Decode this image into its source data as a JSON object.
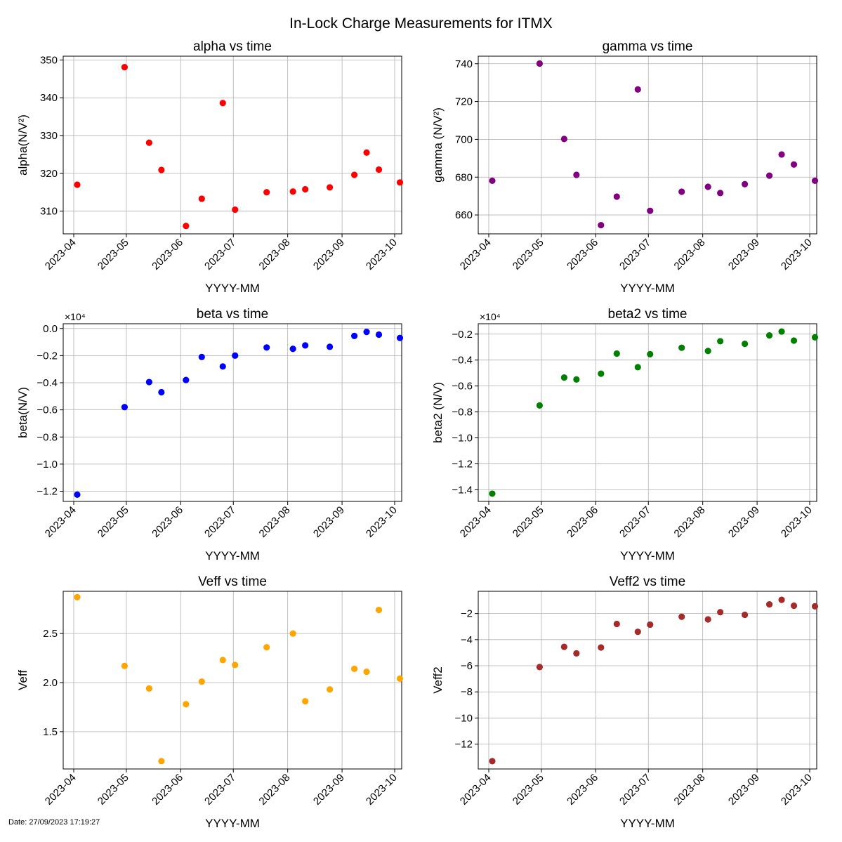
{
  "figure": {
    "title": "In-Lock Charge Measurements for ITMX",
    "footer": "Date: 27/09/2023 17:19:27"
  },
  "colors": {
    "alpha": "#ff0000",
    "gamma": "#800080",
    "beta": "#0000ff",
    "beta2": "#008000",
    "Veff": "#ffa500",
    "Veff2": "#a52a2a",
    "grid": "#b0b0b0"
  },
  "chart_data": [
    {
      "id": "alpha",
      "type": "scatter",
      "title": "alpha vs time",
      "xlabel": "YYYY-MM",
      "ylabel": "alpha(N/V²)",
      "color": "#ff0000",
      "grid": true,
      "x_ticks": [
        "2023-04",
        "2023-05",
        "2023-06",
        "2023-07",
        "2023-08",
        "2023-09",
        "2023-10"
      ],
      "xlim": [
        "2023-03-26",
        "2023-10-05"
      ],
      "ylim": [
        304,
        351
      ],
      "y_ticks": [
        "310",
        "320",
        "330",
        "340",
        "350"
      ],
      "y_tick_values": [
        310,
        320,
        330,
        340,
        350
      ],
      "offset_text": "",
      "points": [
        {
          "x": "2023-04-03",
          "y": 317.0
        },
        {
          "x": "2023-04-30",
          "y": 348.1
        },
        {
          "x": "2023-05-14",
          "y": 328.1
        },
        {
          "x": "2023-05-21",
          "y": 320.9
        },
        {
          "x": "2023-06-04",
          "y": 306.1
        },
        {
          "x": "2023-06-13",
          "y": 313.3
        },
        {
          "x": "2023-06-25",
          "y": 338.6
        },
        {
          "x": "2023-07-02",
          "y": 310.4
        },
        {
          "x": "2023-07-20",
          "y": 315.0
        },
        {
          "x": "2023-08-04",
          "y": 315.2
        },
        {
          "x": "2023-08-11",
          "y": 315.8
        },
        {
          "x": "2023-08-25",
          "y": 316.3
        },
        {
          "x": "2023-09-08",
          "y": 319.6
        },
        {
          "x": "2023-09-15",
          "y": 325.5
        },
        {
          "x": "2023-09-22",
          "y": 321.0
        },
        {
          "x": "2023-10-04",
          "y": 317.6
        }
      ]
    },
    {
      "id": "gamma",
      "type": "scatter",
      "title": "gamma vs time",
      "xlabel": "YYYY-MM",
      "ylabel": "gamma (N/V²)",
      "color": "#800080",
      "grid": true,
      "x_ticks": [
        "2023-04",
        "2023-05",
        "2023-06",
        "2023-07",
        "2023-08",
        "2023-09",
        "2023-10"
      ],
      "xlim": [
        "2023-03-26",
        "2023-10-05"
      ],
      "ylim": [
        650,
        744
      ],
      "y_ticks": [
        "660",
        "680",
        "700",
        "720",
        "740"
      ],
      "y_tick_values": [
        660,
        680,
        700,
        720,
        740
      ],
      "offset_text": "",
      "points": [
        {
          "x": "2023-04-03",
          "y": 678.1
        },
        {
          "x": "2023-04-30",
          "y": 740.1
        },
        {
          "x": "2023-05-14",
          "y": 700.2
        },
        {
          "x": "2023-05-21",
          "y": 681.2
        },
        {
          "x": "2023-06-04",
          "y": 654.6
        },
        {
          "x": "2023-06-13",
          "y": 669.7
        },
        {
          "x": "2023-06-25",
          "y": 726.4
        },
        {
          "x": "2023-07-02",
          "y": 662.2
        },
        {
          "x": "2023-07-20",
          "y": 672.3
        },
        {
          "x": "2023-08-04",
          "y": 674.9
        },
        {
          "x": "2023-08-11",
          "y": 671.6
        },
        {
          "x": "2023-08-25",
          "y": 676.3
        },
        {
          "x": "2023-09-08",
          "y": 680.8
        },
        {
          "x": "2023-09-15",
          "y": 692.0
        },
        {
          "x": "2023-09-22",
          "y": 686.7
        },
        {
          "x": "2023-10-04",
          "y": 678.1
        }
      ]
    },
    {
      "id": "beta",
      "type": "scatter",
      "title": "beta vs time",
      "xlabel": "YYYY-MM",
      "ylabel": "beta(N/V)",
      "color": "#0000ff",
      "grid": true,
      "x_ticks": [
        "2023-04",
        "2023-05",
        "2023-06",
        "2023-07",
        "2023-08",
        "2023-09",
        "2023-10"
      ],
      "xlim": [
        "2023-03-26",
        "2023-10-05"
      ],
      "ylim": [
        -12750,
        350
      ],
      "y_ticks": [
        "0.0",
        "−0.2",
        "−0.4",
        "−0.6",
        "−0.8",
        "−1.0",
        "−1.2"
      ],
      "y_tick_values": [
        0,
        -2000,
        -4000,
        -6000,
        -8000,
        -10000,
        -12000
      ],
      "offset_text": "×10⁴",
      "points": [
        {
          "x": "2023-04-03",
          "y": -12250
        },
        {
          "x": "2023-04-30",
          "y": -5800
        },
        {
          "x": "2023-05-14",
          "y": -3950
        },
        {
          "x": "2023-05-21",
          "y": -4700
        },
        {
          "x": "2023-06-04",
          "y": -3800
        },
        {
          "x": "2023-06-13",
          "y": -2100
        },
        {
          "x": "2023-06-25",
          "y": -2800
        },
        {
          "x": "2023-07-02",
          "y": -2000
        },
        {
          "x": "2023-07-20",
          "y": -1400
        },
        {
          "x": "2023-08-04",
          "y": -1500
        },
        {
          "x": "2023-08-11",
          "y": -1250
        },
        {
          "x": "2023-08-25",
          "y": -1350
        },
        {
          "x": "2023-09-08",
          "y": -550
        },
        {
          "x": "2023-09-15",
          "y": -250
        },
        {
          "x": "2023-09-22",
          "y": -450
        },
        {
          "x": "2023-10-04",
          "y": -700
        }
      ]
    },
    {
      "id": "beta2",
      "type": "scatter",
      "title": "beta2 vs time",
      "xlabel": "YYYY-MM",
      "ylabel": "beta2 (N/V)",
      "color": "#008000",
      "grid": true,
      "x_ticks": [
        "2023-04",
        "2023-05",
        "2023-06",
        "2023-07",
        "2023-08",
        "2023-09",
        "2023-10"
      ],
      "xlim": [
        "2023-03-26",
        "2023-10-05"
      ],
      "ylim": [
        -14900,
        -1200
      ],
      "y_ticks": [
        "−0.2",
        "−0.4",
        "−0.6",
        "−0.8",
        "−1.0",
        "−1.2",
        "−1.4"
      ],
      "y_tick_values": [
        -2000,
        -4000,
        -6000,
        -8000,
        -10000,
        -12000,
        -14000
      ],
      "offset_text": "×10⁴",
      "points": [
        {
          "x": "2023-04-03",
          "y": -14300
        },
        {
          "x": "2023-04-30",
          "y": -7500
        },
        {
          "x": "2023-05-14",
          "y": -5350
        },
        {
          "x": "2023-05-21",
          "y": -5500
        },
        {
          "x": "2023-06-04",
          "y": -5050
        },
        {
          "x": "2023-06-13",
          "y": -3500
        },
        {
          "x": "2023-06-25",
          "y": -4550
        },
        {
          "x": "2023-07-02",
          "y": -3550
        },
        {
          "x": "2023-07-20",
          "y": -3050
        },
        {
          "x": "2023-08-04",
          "y": -3300
        },
        {
          "x": "2023-08-11",
          "y": -2550
        },
        {
          "x": "2023-08-25",
          "y": -2750
        },
        {
          "x": "2023-09-08",
          "y": -2100
        },
        {
          "x": "2023-09-15",
          "y": -1800
        },
        {
          "x": "2023-09-22",
          "y": -2500
        },
        {
          "x": "2023-10-04",
          "y": -2250
        }
      ]
    },
    {
      "id": "Veff",
      "type": "scatter",
      "title": "Veff vs time",
      "xlabel": "YYYY-MM",
      "ylabel": "Veff",
      "color": "#ffa500",
      "grid": true,
      "x_ticks": [
        "2023-04",
        "2023-05",
        "2023-06",
        "2023-07",
        "2023-08",
        "2023-09",
        "2023-10"
      ],
      "xlim": [
        "2023-03-26",
        "2023-10-05"
      ],
      "ylim": [
        1.12,
        2.93
      ],
      "y_ticks": [
        "1.5",
        "2.0",
        "2.5"
      ],
      "y_tick_values": [
        1.5,
        2.0,
        2.5
      ],
      "offset_text": "",
      "points": [
        {
          "x": "2023-04-03",
          "y": 2.87
        },
        {
          "x": "2023-04-30",
          "y": 2.17
        },
        {
          "x": "2023-05-14",
          "y": 1.94
        },
        {
          "x": "2023-05-21",
          "y": 1.2
        },
        {
          "x": "2023-06-04",
          "y": 1.78
        },
        {
          "x": "2023-06-13",
          "y": 2.01
        },
        {
          "x": "2023-06-25",
          "y": 2.23
        },
        {
          "x": "2023-07-02",
          "y": 2.18
        },
        {
          "x": "2023-07-20",
          "y": 2.36
        },
        {
          "x": "2023-08-04",
          "y": 2.5
        },
        {
          "x": "2023-08-11",
          "y": 1.81
        },
        {
          "x": "2023-08-25",
          "y": 1.93
        },
        {
          "x": "2023-09-08",
          "y": 2.14
        },
        {
          "x": "2023-09-15",
          "y": 2.11
        },
        {
          "x": "2023-09-22",
          "y": 2.74
        },
        {
          "x": "2023-10-04",
          "y": 2.04
        }
      ]
    },
    {
      "id": "Veff2",
      "type": "scatter",
      "title": "Veff2 vs time",
      "xlabel": "YYYY-MM",
      "ylabel": "Veff2",
      "color": "#a52a2a",
      "grid": true,
      "x_ticks": [
        "2023-04",
        "2023-05",
        "2023-06",
        "2023-07",
        "2023-08",
        "2023-09",
        "2023-10"
      ],
      "xlim": [
        "2023-03-26",
        "2023-10-05"
      ],
      "ylim": [
        -13.9,
        -0.3
      ],
      "y_ticks": [
        "−2",
        "−4",
        "−6",
        "−8",
        "−10",
        "−12"
      ],
      "y_tick_values": [
        -2,
        -4,
        -6,
        -8,
        -10,
        -12
      ],
      "offset_text": "",
      "points": [
        {
          "x": "2023-04-03",
          "y": -13.3
        },
        {
          "x": "2023-04-30",
          "y": -6.1
        },
        {
          "x": "2023-05-14",
          "y": -4.55
        },
        {
          "x": "2023-05-21",
          "y": -5.05
        },
        {
          "x": "2023-06-04",
          "y": -4.6
        },
        {
          "x": "2023-06-13",
          "y": -2.8
        },
        {
          "x": "2023-06-25",
          "y": -3.4
        },
        {
          "x": "2023-07-02",
          "y": -2.85
        },
        {
          "x": "2023-07-20",
          "y": -2.25
        },
        {
          "x": "2023-08-04",
          "y": -2.45
        },
        {
          "x": "2023-08-11",
          "y": -1.9
        },
        {
          "x": "2023-08-25",
          "y": -2.1
        },
        {
          "x": "2023-09-08",
          "y": -1.3
        },
        {
          "x": "2023-09-15",
          "y": -0.95
        },
        {
          "x": "2023-09-22",
          "y": -1.4
        },
        {
          "x": "2023-10-04",
          "y": -1.45
        }
      ]
    }
  ]
}
